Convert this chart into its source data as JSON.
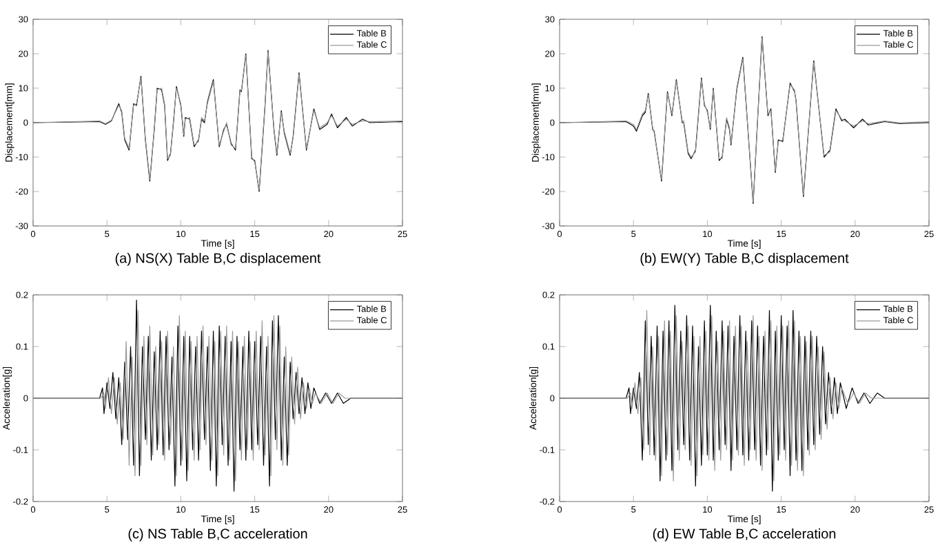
{
  "chart_data": [
    {
      "type": "line",
      "title": "(a) NS(X) Table B,C displacement",
      "xlabel": "Time [s]",
      "ylabel": "Displacement[mm]",
      "legend": "top right",
      "xlim": [
        0,
        25
      ],
      "ylim": [
        -30,
        30
      ],
      "xticks": [
        0,
        5,
        10,
        15,
        20,
        25
      ],
      "yticks": [
        -30,
        -20,
        -10,
        0,
        10,
        20,
        30
      ],
      "x": [
        0,
        4.5,
        4.9,
        5.3,
        5.8,
        6.0,
        6.2,
        6.5,
        6.8,
        7.0,
        7.3,
        7.6,
        7.9,
        8.2,
        8.4,
        8.7,
        8.9,
        9.1,
        9.3,
        9.5,
        9.7,
        10.0,
        10.2,
        10.3,
        10.6,
        10.9,
        11.2,
        11.4,
        11.6,
        11.8,
        12.2,
        12.6,
        12.9,
        13.1,
        13.4,
        13.7,
        14.0,
        14.1,
        14.4,
        14.8,
        15.0,
        15.3,
        15.7,
        15.9,
        16.3,
        16.5,
        16.8,
        17.0,
        17.4,
        17.6,
        18.0,
        18.5,
        19.0,
        19.4,
        19.9,
        20.2,
        20.6,
        21.2,
        21.6,
        22.3,
        22.8,
        25
      ],
      "series": [
        {
          "name": "Table B",
          "color": "#000000",
          "values": [
            0,
            0.3,
            -0.5,
            0.5,
            5.5,
            3,
            -5,
            -8,
            5.5,
            5,
            13.5,
            -5,
            -17,
            -2,
            10,
            9.5,
            5,
            -11,
            -9,
            0,
            10.5,
            5,
            -4,
            1.5,
            1,
            -7,
            -5,
            1,
            0,
            6,
            12.5,
            -7,
            -2,
            -0.5,
            -6,
            -8,
            9.5,
            9,
            20,
            -10.5,
            -11,
            -20,
            5,
            21,
            -2,
            -9.5,
            3.5,
            -3,
            -9.5,
            -4,
            14.5,
            -8,
            4,
            -2,
            -0.5,
            2.5,
            -1.5,
            1.5,
            -1,
            1,
            0,
            0.3
          ]
        },
        {
          "name": "Table C",
          "color": "#999999",
          "values": [
            0,
            0.5,
            -0.3,
            0.7,
            5,
            3.5,
            -4.5,
            -7.5,
            5,
            5.5,
            13,
            -4.5,
            -16.5,
            -2.5,
            9.5,
            10,
            5.5,
            -10.5,
            -9.5,
            0.5,
            10,
            5.5,
            -3.5,
            1,
            1.5,
            -6.5,
            -5.5,
            1.5,
            0.5,
            5.5,
            12,
            -6.5,
            -2.5,
            0,
            -6.5,
            -7.5,
            9,
            9.5,
            19.5,
            -10,
            -11.5,
            -19.5,
            5.5,
            20.5,
            -1.5,
            -9,
            3,
            -2.5,
            -9,
            -4.5,
            14,
            -7.5,
            3.5,
            -1.5,
            0,
            2,
            -1,
            1,
            -0.5,
            0.5,
            0.3,
            0.5
          ]
        }
      ]
    },
    {
      "type": "line",
      "title": "(b) EW(Y) Table B,C displacement",
      "xlabel": "Time [s]",
      "ylabel": "Displacement[mm]",
      "legend": "top right",
      "xlim": [
        0,
        25
      ],
      "ylim": [
        -30,
        30
      ],
      "xticks": [
        0,
        5,
        10,
        15,
        20,
        25
      ],
      "yticks": [
        -30,
        -20,
        -10,
        0,
        10,
        20,
        30
      ],
      "x": [
        0,
        4.5,
        5.0,
        5.2,
        5.6,
        5.8,
        6.0,
        6.3,
        6.4,
        6.9,
        7.3,
        7.6,
        7.9,
        8.3,
        8.4,
        8.7,
        8.9,
        9.2,
        9.6,
        9.8,
        10.0,
        10.2,
        10.4,
        10.8,
        11.0,
        11.3,
        11.5,
        11.6,
        12.0,
        12.4,
        13.1,
        13.7,
        14.1,
        14.3,
        14.6,
        14.8,
        15.1,
        15.6,
        15.9,
        16.0,
        16.5,
        17.2,
        17.9,
        18.3,
        18.7,
        19.1,
        19.3,
        19.9,
        20.5,
        20.9,
        22,
        23,
        25
      ],
      "series": [
        {
          "name": "Table B",
          "color": "#000000",
          "values": [
            0,
            0.3,
            -1,
            -2.5,
            2,
            3,
            8.5,
            -2,
            -2.5,
            -17,
            9,
            2,
            12.5,
            0,
            0,
            -9,
            -10.5,
            -8,
            13,
            5,
            3.5,
            -2,
            10,
            -11,
            -10,
            1,
            -2,
            -6.5,
            10,
            19,
            -23.5,
            25,
            2,
            4,
            -14.5,
            -5,
            -5.5,
            11.5,
            9,
            6.5,
            -21.5,
            18,
            -10,
            -8,
            4,
            0.5,
            1,
            -1.5,
            1,
            -0.7,
            0.3,
            -0.3,
            0
          ]
        },
        {
          "name": "Table C",
          "color": "#999999",
          "values": [
            0,
            0.5,
            -0.5,
            -2,
            2.5,
            3.5,
            8,
            -1.5,
            -3,
            -16.5,
            8.5,
            2.5,
            12,
            0.5,
            0.5,
            -8.5,
            -10,
            -8.5,
            12.5,
            5.5,
            3,
            -1.5,
            9.5,
            -10.5,
            -10.5,
            1.5,
            -1.5,
            -6,
            9.5,
            18.5,
            -23,
            24.5,
            2.5,
            3.5,
            -14,
            -5.5,
            -5,
            11,
            9.5,
            6,
            -21,
            17.5,
            -9.5,
            -8.5,
            3.5,
            1,
            0.5,
            -1,
            0.5,
            -0.3,
            0.5,
            0,
            0.3
          ]
        }
      ]
    },
    {
      "type": "line",
      "title": "(c) NS Table B,C acceleration",
      "xlabel": "Time [s]",
      "ylabel": "Acceleration[g]",
      "legend": "top right",
      "xlim": [
        0,
        25
      ],
      "ylim": [
        -0.2,
        0.2
      ],
      "xticks": [
        0,
        5,
        10,
        15,
        20,
        25
      ],
      "yticks": [
        -0.2,
        -0.1,
        0,
        0.1,
        0.2
      ],
      "x": [
        0,
        4.5,
        4.7,
        4.8,
        5.0,
        5.2,
        5.4,
        5.6,
        5.8,
        6.0,
        6.2,
        6.4,
        6.6,
        6.8,
        7.0,
        7.2,
        7.4,
        7.6,
        7.8,
        8.0,
        8.2,
        8.4,
        8.6,
        8.8,
        9.0,
        9.2,
        9.4,
        9.6,
        9.8,
        10.0,
        10.2,
        10.4,
        10.6,
        10.8,
        11.0,
        11.2,
        11.4,
        11.6,
        11.8,
        12.0,
        12.2,
        12.4,
        12.6,
        12.8,
        13.0,
        13.2,
        13.4,
        13.6,
        13.8,
        14.0,
        14.2,
        14.4,
        14.6,
        14.8,
        15.0,
        15.2,
        15.4,
        15.6,
        15.8,
        16.0,
        16.2,
        16.4,
        16.6,
        16.8,
        17.0,
        17.2,
        17.4,
        17.6,
        17.8,
        18.0,
        18.2,
        18.4,
        18.6,
        18.8,
        19.0,
        19.4,
        19.8,
        20.2,
        20.6,
        21.0,
        21.5,
        22,
        23,
        24,
        25
      ],
      "series": [
        {
          "name": "Table B",
          "color": "#000000",
          "values": [
            0,
            0,
            0.02,
            -0.03,
            0.03,
            -0.02,
            0.05,
            -0.04,
            0.04,
            -0.09,
            0.07,
            -0.08,
            0.1,
            -0.13,
            0.19,
            -0.15,
            0.1,
            -0.08,
            0.12,
            -0.12,
            0.09,
            -0.1,
            0.13,
            -0.11,
            0.12,
            -0.1,
            0.08,
            -0.17,
            0.14,
            -0.13,
            0.12,
            -0.16,
            0.12,
            -0.1,
            0.1,
            -0.12,
            0.13,
            -0.08,
            0.1,
            -0.14,
            0.13,
            -0.17,
            0.14,
            -0.09,
            0.12,
            -0.13,
            0.11,
            -0.18,
            0.12,
            -0.1,
            0.1,
            -0.12,
            0.13,
            -0.1,
            0.11,
            -0.09,
            0.12,
            -0.13,
            0.1,
            -0.17,
            0.15,
            -0.08,
            0.16,
            -0.12,
            0.08,
            -0.13,
            0.07,
            -0.04,
            0.05,
            -0.03,
            0.04,
            -0.03,
            0.03,
            -0.02,
            0.02,
            -0.01,
            0.01,
            -0.01,
            0.01,
            -0.01,
            0,
            0,
            0,
            0,
            0
          ]
        },
        {
          "name": "Table C",
          "color": "#999999",
          "x": [
            0,
            4.6,
            4.8,
            4.9,
            5.1,
            5.3,
            5.5,
            5.7,
            5.9,
            6.1,
            6.3,
            6.5,
            6.7,
            6.9,
            7.1,
            7.3,
            7.5,
            7.7,
            7.9,
            8.1,
            8.3,
            8.5,
            8.7,
            8.9,
            9.1,
            9.3,
            9.5,
            9.7,
            9.9,
            10.1,
            10.3,
            10.5,
            10.7,
            10.9,
            11.1,
            11.3,
            11.5,
            11.7,
            11.9,
            12.1,
            12.3,
            12.5,
            12.7,
            12.9,
            13.1,
            13.3,
            13.5,
            13.7,
            13.9,
            14.1,
            14.3,
            14.5,
            14.7,
            14.9,
            15.1,
            15.3,
            15.5,
            15.7,
            15.9,
            16.1,
            16.3,
            16.5,
            16.7,
            16.9,
            17.1,
            17.3,
            17.5,
            17.7,
            17.9,
            18.1,
            18.3,
            18.5,
            18.7,
            18.9,
            19.1,
            19.5,
            19.9,
            20.3,
            20.7,
            21.1,
            21.6,
            22.1,
            23.1,
            24.1,
            25
          ],
          "values": [
            0,
            0,
            0.01,
            -0.02,
            0.04,
            -0.03,
            0.04,
            -0.05,
            0.03,
            -0.08,
            0.11,
            -0.13,
            0.08,
            -0.15,
            0.17,
            -0.13,
            0.12,
            -0.09,
            0.14,
            -0.11,
            0.1,
            -0.09,
            0.11,
            -0.12,
            0.13,
            -0.09,
            0.1,
            -0.15,
            0.16,
            -0.12,
            0.13,
            -0.14,
            0.11,
            -0.12,
            0.12,
            -0.1,
            0.14,
            -0.09,
            0.12,
            -0.12,
            0.11,
            -0.15,
            0.13,
            -0.11,
            0.14,
            -0.12,
            0.13,
            -0.16,
            0.11,
            -0.12,
            0.12,
            -0.1,
            0.11,
            -0.12,
            0.13,
            -0.1,
            0.15,
            -0.11,
            0.12,
            -0.15,
            0.16,
            -0.1,
            0.14,
            -0.13,
            0.1,
            -0.11,
            0.08,
            -0.05,
            0.06,
            -0.04,
            0.03,
            -0.02,
            0.02,
            -0.01,
            0.01,
            -0.01,
            0.01,
            -0.01,
            0.01,
            0,
            0,
            0,
            0,
            0,
            0
          ]
        }
      ]
    },
    {
      "type": "line",
      "title": "(d) EW Table B,C acceleration",
      "xlabel": "Time [s]",
      "ylabel": "Acceleration[g]",
      "legend": "top right",
      "xlim": [
        0,
        25
      ],
      "ylim": [
        -0.2,
        0.2
      ],
      "xticks": [
        0,
        5,
        10,
        15,
        20,
        25
      ],
      "yticks": [
        -0.2,
        -0.1,
        0,
        0.1,
        0.2
      ],
      "x": [
        0,
        4.5,
        4.7,
        4.8,
        5.0,
        5.2,
        5.4,
        5.6,
        5.8,
        6.0,
        6.2,
        6.4,
        6.6,
        6.8,
        7.0,
        7.2,
        7.4,
        7.6,
        7.8,
        8.0,
        8.2,
        8.4,
        8.6,
        8.8,
        9.0,
        9.2,
        9.4,
        9.6,
        9.8,
        10.0,
        10.2,
        10.4,
        10.6,
        10.8,
        11.0,
        11.2,
        11.4,
        11.6,
        11.8,
        12.0,
        12.2,
        12.4,
        12.6,
        12.8,
        13.0,
        13.2,
        13.4,
        13.6,
        13.8,
        14.0,
        14.2,
        14.4,
        14.6,
        14.8,
        15.0,
        15.2,
        15.4,
        15.6,
        15.8,
        16.0,
        16.2,
        16.4,
        16.6,
        16.8,
        17.0,
        17.2,
        17.4,
        17.6,
        17.8,
        18.0,
        18.2,
        18.4,
        18.6,
        18.8,
        19.0,
        19.4,
        19.8,
        20.2,
        20.6,
        21.0,
        21.5,
        22,
        23,
        24,
        25
      ],
      "series": [
        {
          "name": "Table B",
          "color": "#000000",
          "values": [
            0,
            0,
            0.02,
            -0.03,
            0.02,
            -0.02,
            0.05,
            -0.12,
            0.15,
            -0.09,
            0.12,
            -0.11,
            0.14,
            -0.16,
            0.13,
            -0.12,
            0.15,
            -0.14,
            0.18,
            -0.1,
            0.13,
            -0.09,
            0.16,
            -0.12,
            0.14,
            -0.17,
            0.1,
            -0.13,
            0.15,
            -0.11,
            0.18,
            -0.12,
            0.13,
            -0.1,
            0.15,
            -0.09,
            0.14,
            -0.14,
            0.12,
            -0.1,
            0.16,
            -0.11,
            0.13,
            -0.12,
            0.15,
            -0.1,
            0.14,
            -0.13,
            0.12,
            -0.11,
            0.17,
            -0.18,
            0.13,
            -0.12,
            0.16,
            -0.1,
            0.14,
            -0.15,
            0.17,
            -0.12,
            0.13,
            -0.14,
            0.12,
            -0.1,
            0.13,
            -0.09,
            0.12,
            -0.07,
            0.1,
            -0.05,
            0.05,
            -0.03,
            0.04,
            -0.03,
            0.03,
            -0.02,
            0.02,
            -0.01,
            0.01,
            -0.01,
            0.01,
            0,
            0,
            0,
            0
          ]
        },
        {
          "name": "Table C",
          "color": "#999999",
          "x": [
            0,
            4.6,
            4.8,
            4.9,
            5.1,
            5.3,
            5.5,
            5.7,
            5.9,
            6.1,
            6.3,
            6.5,
            6.7,
            6.9,
            7.1,
            7.3,
            7.5,
            7.7,
            7.9,
            8.1,
            8.3,
            8.5,
            8.7,
            8.9,
            9.1,
            9.3,
            9.5,
            9.7,
            9.9,
            10.1,
            10.3,
            10.5,
            10.7,
            10.9,
            11.1,
            11.3,
            11.5,
            11.7,
            11.9,
            12.1,
            12.3,
            12.5,
            12.7,
            12.9,
            13.1,
            13.3,
            13.5,
            13.7,
            13.9,
            14.1,
            14.3,
            14.5,
            14.7,
            14.9,
            15.1,
            15.3,
            15.5,
            15.7,
            15.9,
            16.1,
            16.3,
            16.5,
            16.7,
            16.9,
            17.1,
            17.3,
            17.5,
            17.7,
            17.9,
            18.1,
            18.3,
            18.5,
            18.7,
            18.9,
            19.1,
            19.5,
            19.9,
            20.3,
            20.7,
            21.1,
            21.6,
            22.1,
            23.1,
            24.1,
            25
          ],
          "values": [
            0,
            0,
            0.01,
            -0.02,
            0.03,
            -0.03,
            0.04,
            -0.1,
            0.17,
            -0.11,
            0.1,
            -0.12,
            0.12,
            -0.15,
            0.15,
            -0.11,
            0.13,
            -0.16,
            0.16,
            -0.12,
            0.11,
            -0.1,
            0.14,
            -0.13,
            0.12,
            -0.15,
            0.12,
            -0.11,
            0.13,
            -0.12,
            0.16,
            -0.14,
            0.11,
            -0.12,
            0.13,
            -0.1,
            0.15,
            -0.12,
            0.14,
            -0.11,
            0.14,
            -0.13,
            0.11,
            -0.1,
            0.16,
            -0.12,
            0.12,
            -0.14,
            0.13,
            -0.1,
            0.15,
            -0.16,
            0.14,
            -0.11,
            0.14,
            -0.12,
            0.15,
            -0.13,
            0.15,
            -0.14,
            0.12,
            -0.15,
            0.11,
            -0.11,
            0.12,
            -0.1,
            0.1,
            -0.08,
            0.09,
            -0.06,
            0.04,
            -0.04,
            0.03,
            -0.02,
            0.02,
            -0.01,
            0.01,
            -0.01,
            0.01,
            0,
            0,
            0,
            0,
            0,
            0
          ]
        }
      ]
    }
  ]
}
